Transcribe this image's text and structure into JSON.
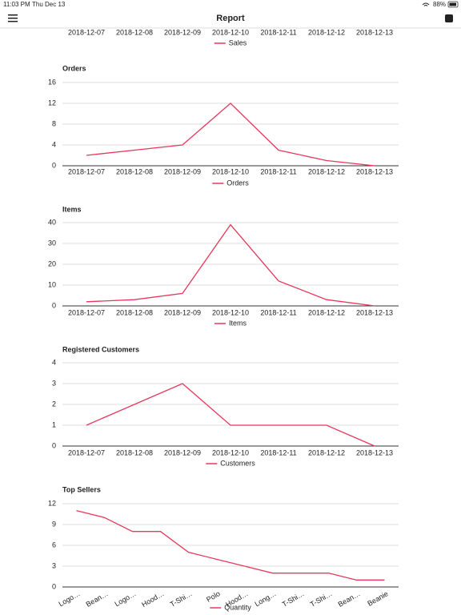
{
  "status_bar": {
    "time": "11:03 PM",
    "date": "Thu Dec 13",
    "battery": "88%"
  },
  "header": {
    "title": "Report"
  },
  "chart_data": [
    {
      "type": "line",
      "categories": [
        "2018-12-07",
        "2018-12-08",
        "2018-12-09",
        "2018-12-10",
        "2018-12-11",
        "2018-12-12",
        "2018-12-13"
      ],
      "series": [
        {
          "name": "Sales",
          "color": "#e8375a"
        }
      ]
    },
    {
      "type": "line",
      "title": "Orders",
      "categories": [
        "2018-12-07",
        "2018-12-08",
        "2018-12-09",
        "2018-12-10",
        "2018-12-11",
        "2018-12-12",
        "2018-12-13"
      ],
      "series": [
        {
          "name": "Orders",
          "color": "#e8375a",
          "values": [
            2,
            3,
            4,
            12,
            3,
            1,
            0
          ]
        }
      ],
      "ylim": [
        0,
        16
      ],
      "yticks": [
        0,
        4,
        8,
        12,
        16
      ],
      "grid": true
    },
    {
      "type": "line",
      "title": "Items",
      "categories": [
        "2018-12-07",
        "2018-12-08",
        "2018-12-09",
        "2018-12-10",
        "2018-12-11",
        "2018-12-12",
        "2018-12-13"
      ],
      "series": [
        {
          "name": "Items",
          "color": "#e8375a",
          "values": [
            2,
            3,
            6,
            39,
            12,
            3,
            0
          ]
        }
      ],
      "ylim": [
        0,
        40
      ],
      "yticks": [
        0,
        10,
        20,
        30,
        40
      ],
      "grid": true
    },
    {
      "type": "line",
      "title": "Registered Customers",
      "categories": [
        "2018-12-07",
        "2018-12-08",
        "2018-12-09",
        "2018-12-10",
        "2018-12-11",
        "2018-12-12",
        "2018-12-13"
      ],
      "series": [
        {
          "name": "Customers",
          "color": "#e8375a",
          "values": [
            1,
            2,
            3,
            1,
            1,
            1,
            0
          ]
        }
      ],
      "ylim": [
        0,
        4
      ],
      "yticks": [
        0,
        1,
        2,
        3,
        4
      ],
      "grid": true
    },
    {
      "type": "line",
      "title": "Top Sellers",
      "categories": [
        "Logo…",
        "Bean…",
        "Logo…",
        "Hood…",
        "T-Shi…",
        "Polo",
        "Hood…",
        "Long…",
        "T-Shi…",
        "T-Shi…",
        "Bean…",
        "Beanie"
      ],
      "series": [
        {
          "name": "Quantity",
          "color": "#e8375a",
          "values": [
            11,
            10,
            8,
            8,
            5,
            4,
            3,
            2,
            2,
            2,
            1,
            1
          ]
        }
      ],
      "ylim": [
        0,
        12
      ],
      "yticks": [
        0,
        3,
        6,
        9,
        12
      ],
      "grid": true
    }
  ]
}
